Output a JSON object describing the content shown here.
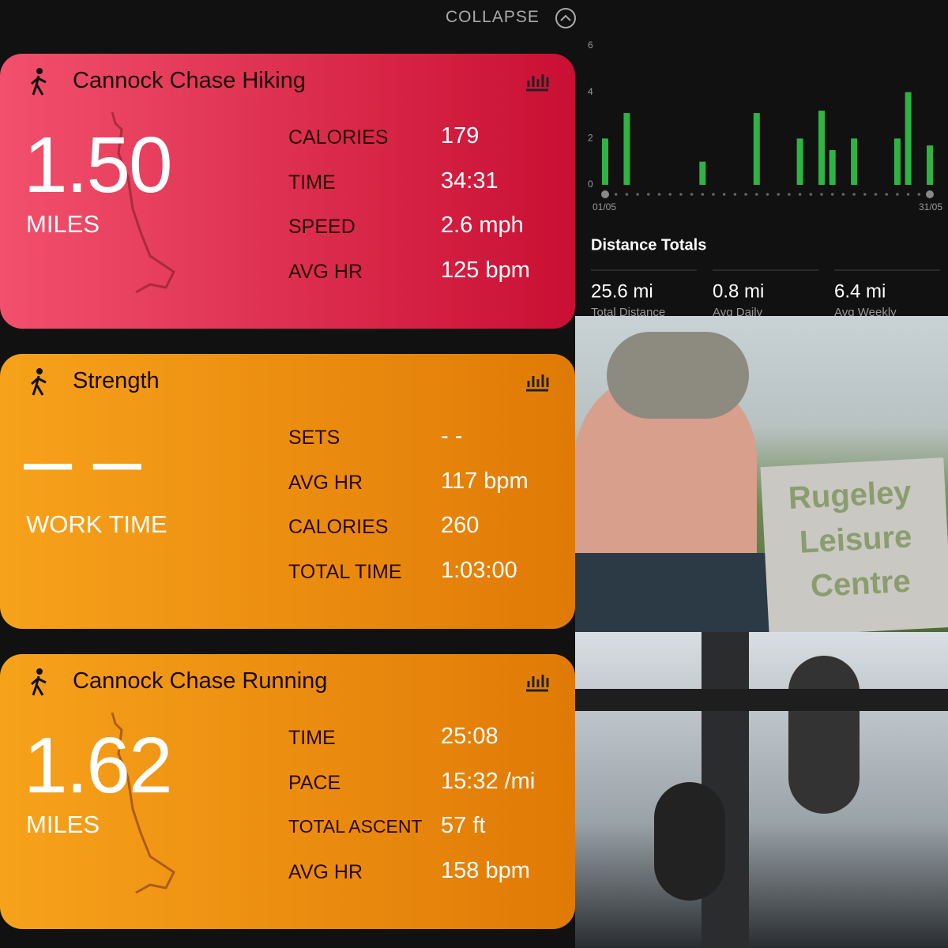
{
  "header": {
    "collapse": "COLLAPSE"
  },
  "cards": [
    {
      "title": "Cannock Chase Hiking",
      "big_value": "1.50",
      "big_unit": "MILES",
      "stats": [
        {
          "label": "CALORIES",
          "value": "179"
        },
        {
          "label": "TIME",
          "value": "34:31"
        },
        {
          "label": "SPEED",
          "value": "2.6 mph"
        },
        {
          "label": "AVG HR",
          "value": "125 bpm"
        }
      ]
    },
    {
      "title": "Strength",
      "big_value": "– –",
      "big_unit": "WORK TIME",
      "stats": [
        {
          "label": "SETS",
          "value": "- -"
        },
        {
          "label": "AVG HR",
          "value": "117 bpm"
        },
        {
          "label": "CALORIES",
          "value": "260"
        },
        {
          "label": "TOTAL TIME",
          "value": "1:03:00"
        }
      ]
    },
    {
      "title": "Cannock Chase Running",
      "big_value": "1.62",
      "big_unit": "MILES",
      "stats": [
        {
          "label": "TIME",
          "value": "25:08"
        },
        {
          "label": "PACE",
          "value": "15:32 /mi"
        },
        {
          "label": "TOTAL ASCENT",
          "value": "57 ft"
        },
        {
          "label": "AVG HR",
          "value": "158 bpm"
        }
      ]
    }
  ],
  "chart_data": {
    "type": "bar",
    "color": "#2fb344",
    "categories": [
      "01/05",
      null,
      null,
      null,
      null,
      null,
      null,
      null,
      null,
      null,
      null,
      null,
      null,
      null,
      null,
      null,
      null,
      null,
      null,
      null,
      null,
      null,
      null,
      null,
      null,
      null,
      null,
      null,
      null,
      null,
      "31/05"
    ],
    "values": [
      2.0,
      0,
      3.1,
      0,
      0,
      0,
      0,
      0,
      0,
      1.0,
      0,
      0,
      0,
      0,
      3.1,
      0,
      0,
      0,
      2.0,
      0,
      3.2,
      1.5,
      0,
      2.0,
      0,
      0,
      0,
      2.0,
      4.0,
      0,
      1.7
    ],
    "ylim": [
      0,
      6
    ],
    "yticks": [
      0,
      2,
      4,
      6
    ]
  },
  "distance_totals": {
    "title": "Distance Totals",
    "items": [
      {
        "value": "25.6 mi",
        "label": "Total Distance"
      },
      {
        "value": "0.8 mi",
        "label": "Avg Daily"
      },
      {
        "value": "6.4 mi",
        "label": "Avg Weekly"
      }
    ]
  },
  "photo": {
    "sign_lines": [
      "Rugeley",
      "Leisure",
      "Centre"
    ]
  }
}
